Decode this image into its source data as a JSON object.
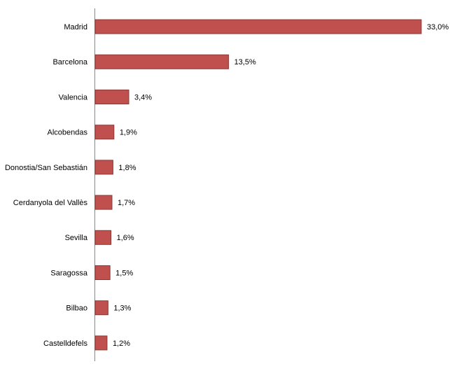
{
  "chart_data": {
    "type": "bar",
    "orientation": "horizontal",
    "categories": [
      "Madrid",
      "Barcelona",
      "Valencia",
      "Alcobendas",
      "Donostia/San Sebastián",
      "Cerdanyola del Vallès",
      "Sevilla",
      "Saragossa",
      "Bilbao",
      "Castelldefels"
    ],
    "values": [
      33.0,
      13.5,
      3.4,
      1.9,
      1.8,
      1.7,
      1.6,
      1.5,
      1.3,
      1.2
    ],
    "value_labels": [
      "33,0%",
      "13,5%",
      "3,4%",
      "1,9%",
      "1,8%",
      "1,7%",
      "1,6%",
      "1,5%",
      "1,3%",
      "1,2%"
    ],
    "color": "#c0504d"
  }
}
